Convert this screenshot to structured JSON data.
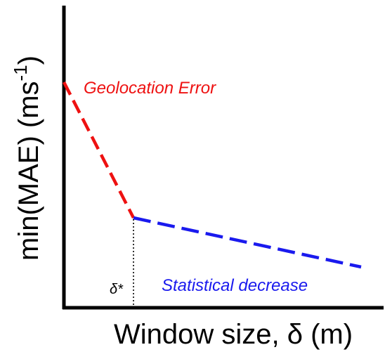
{
  "diagram": {
    "ylabel_base": "min(MAE) (ms",
    "ylabel_sup": "-1",
    "ylabel_close": ")",
    "xlabel": "Window size, δ (m)",
    "threshold_label": "δ*",
    "segments": [
      {
        "label": "Geolocation Error",
        "color": "#ee1111",
        "style": "dashed"
      },
      {
        "label": "Statistical decrease",
        "color": "#1a1aee",
        "style": "dashed"
      }
    ],
    "threshold_line": {
      "color": "#000000",
      "style": "dotted"
    },
    "axis_color": "#000000"
  }
}
